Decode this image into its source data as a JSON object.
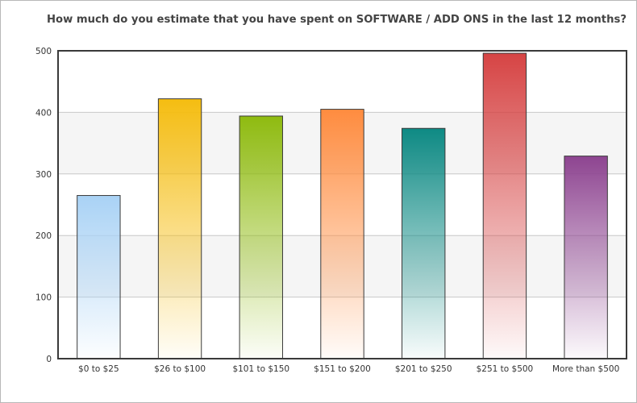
{
  "chart_data": {
    "type": "bar",
    "title": "How much do you estimate that you have spent on SOFTWARE / ADD ONS in the last 12 months?",
    "categories": [
      "$0 to $25",
      "$26 to $100",
      "$101 to $150",
      "$151 to $200",
      "$201 to $250",
      "$251 to $500",
      "More than $500"
    ],
    "values": [
      265,
      422,
      394,
      405,
      374,
      496,
      329
    ],
    "ylim": [
      0,
      500
    ],
    "yticks": [
      0,
      100,
      200,
      300,
      400,
      500
    ],
    "ytick_labels": [
      "0",
      "100",
      "200",
      "300",
      "400",
      "500"
    ],
    "grid": true,
    "legend": "none",
    "colors": [
      "#a9d2f5",
      "#f5bd11",
      "#8fbb10",
      "#ff8c3f",
      "#0e8a84",
      "#d64444",
      "#8e4591"
    ]
  }
}
